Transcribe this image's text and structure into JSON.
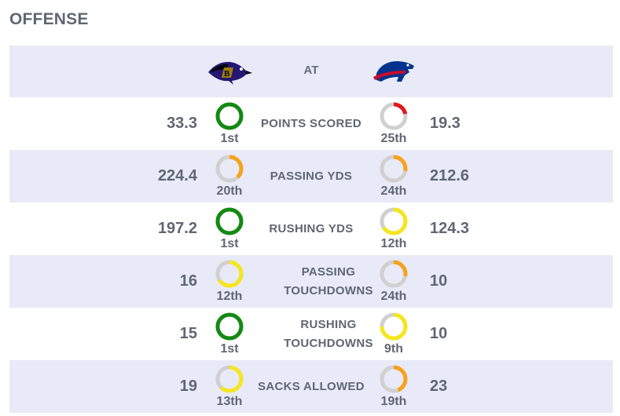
{
  "section_title": "OFFENSE",
  "header": {
    "at_label": "AT",
    "home_logo": "ravens-logo",
    "away_logo": "bills-logo"
  },
  "colors": {
    "header_bg": "#e8eaf7",
    "ring_track": "#d0d0d0",
    "rank_top": "#138a13",
    "rank_good": "#f5e61e",
    "rank_mid": "#f6a21b",
    "rank_bad": "#e3171d"
  },
  "stats": [
    {
      "label": "POINTS SCORED",
      "home_value": "33.3",
      "home_rank": "1st",
      "home_fill": 1.0,
      "home_color": "#138a13",
      "away_value": "19.3",
      "away_rank": "25th",
      "away_fill": 0.22,
      "away_color": "#e3171d"
    },
    {
      "label": "PASSING YDS",
      "home_value": "224.4",
      "home_rank": "20th",
      "home_fill": 0.38,
      "home_color": "#f6a21b",
      "away_value": "212.6",
      "away_rank": "24th",
      "away_fill": 0.28,
      "away_color": "#f6a21b"
    },
    {
      "label": "RUSHING YDS",
      "home_value": "197.2",
      "home_rank": "1st",
      "home_fill": 1.0,
      "home_color": "#138a13",
      "away_value": "124.3",
      "away_rank": "12th",
      "away_fill": 0.66,
      "away_color": "#f5e61e"
    },
    {
      "label": "PASSING TOUCHDOWNS",
      "home_value": "16",
      "home_rank": "12th",
      "home_fill": 0.66,
      "home_color": "#f5e61e",
      "away_value": "10",
      "away_rank": "24th",
      "away_fill": 0.28,
      "away_color": "#f6a21b"
    },
    {
      "label": "RUSHING TOUCHDOWNS",
      "home_value": "15",
      "home_rank": "1st",
      "home_fill": 1.0,
      "home_color": "#138a13",
      "away_value": "10",
      "away_rank": "9th",
      "away_fill": 0.75,
      "away_color": "#f5e61e"
    },
    {
      "label": "SACKS ALLOWED",
      "home_value": "19",
      "home_rank": "13th",
      "home_fill": 0.62,
      "home_color": "#f5e61e",
      "away_value": "23",
      "away_rank": "19th",
      "away_fill": 0.44,
      "away_color": "#f6a21b"
    }
  ]
}
